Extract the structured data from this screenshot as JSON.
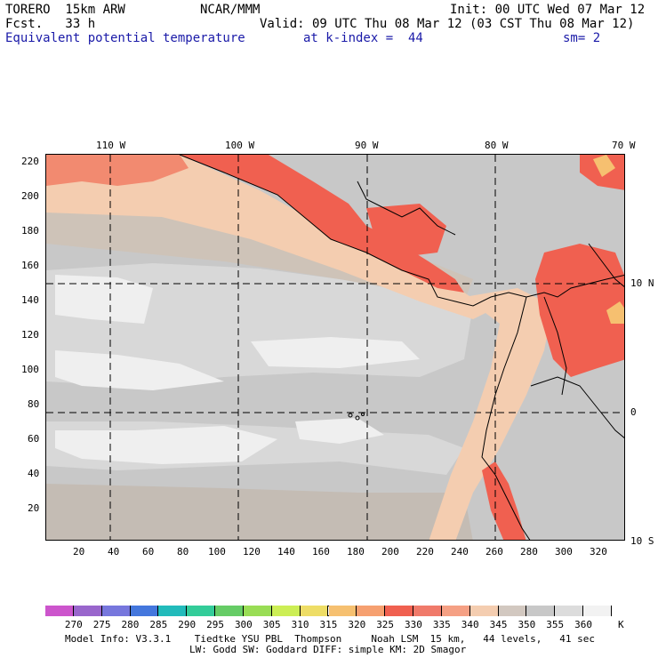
{
  "header": {
    "model": "TORERO  15km ARW",
    "center": "NCAR/MMM",
    "init": "Init: 00 UTC Wed 07 Mar 12",
    "fcst": "Fcst.   33 h",
    "valid": "Valid: 09 UTC Thu 08 Mar 12 (03 CST Thu 08 Mar 12)",
    "field": "Equivalent potential temperature",
    "level": "at k-index =  44",
    "smooth": "sm= 2"
  },
  "top_lon_labels": [
    "110 W",
    "100 W",
    "90 W",
    "80 W",
    "70 W"
  ],
  "right_lat_labels": [
    "10 N",
    "0",
    "10 S"
  ],
  "y_grid_labels": [
    "220",
    "200",
    "180",
    "160",
    "140",
    "120",
    "100",
    "80",
    "60",
    "40",
    "20"
  ],
  "x_grid_labels": [
    "20",
    "40",
    "60",
    "80",
    "100",
    "120",
    "140",
    "160",
    "180",
    "200",
    "220",
    "240",
    "260",
    "280",
    "300",
    "320"
  ],
  "colorbar": {
    "levels": [
      "270",
      "275",
      "280",
      "285",
      "290",
      "295",
      "300",
      "305",
      "310",
      "315",
      "320",
      "325",
      "330",
      "335",
      "340",
      "345",
      "350",
      "355",
      "360"
    ],
    "unit": "K",
    "colors": [
      "#cc55cc",
      "#9966cc",
      "#7777dd",
      "#4477dd",
      "#22bbbb",
      "#33cc99",
      "#66cc66",
      "#99dd55",
      "#ccee55",
      "#eedd66",
      "#f6c070",
      "#f6a070",
      "#f06050",
      "#f07a6a",
      "#f5a084",
      "#f4cdb0",
      "#d2c8c0",
      "#c8c8c8",
      "#dcdcdc",
      "#f2f2f2"
    ]
  },
  "footer": {
    "line1": "Model Info: V3.3.1    Tiedtke YSU PBL  Thompson     Noah LSM  15 km,   44 levels,   41 sec",
    "line2": "LW: Godd SW: Goddard DIFF: simple KM: 2D Smagor"
  }
}
